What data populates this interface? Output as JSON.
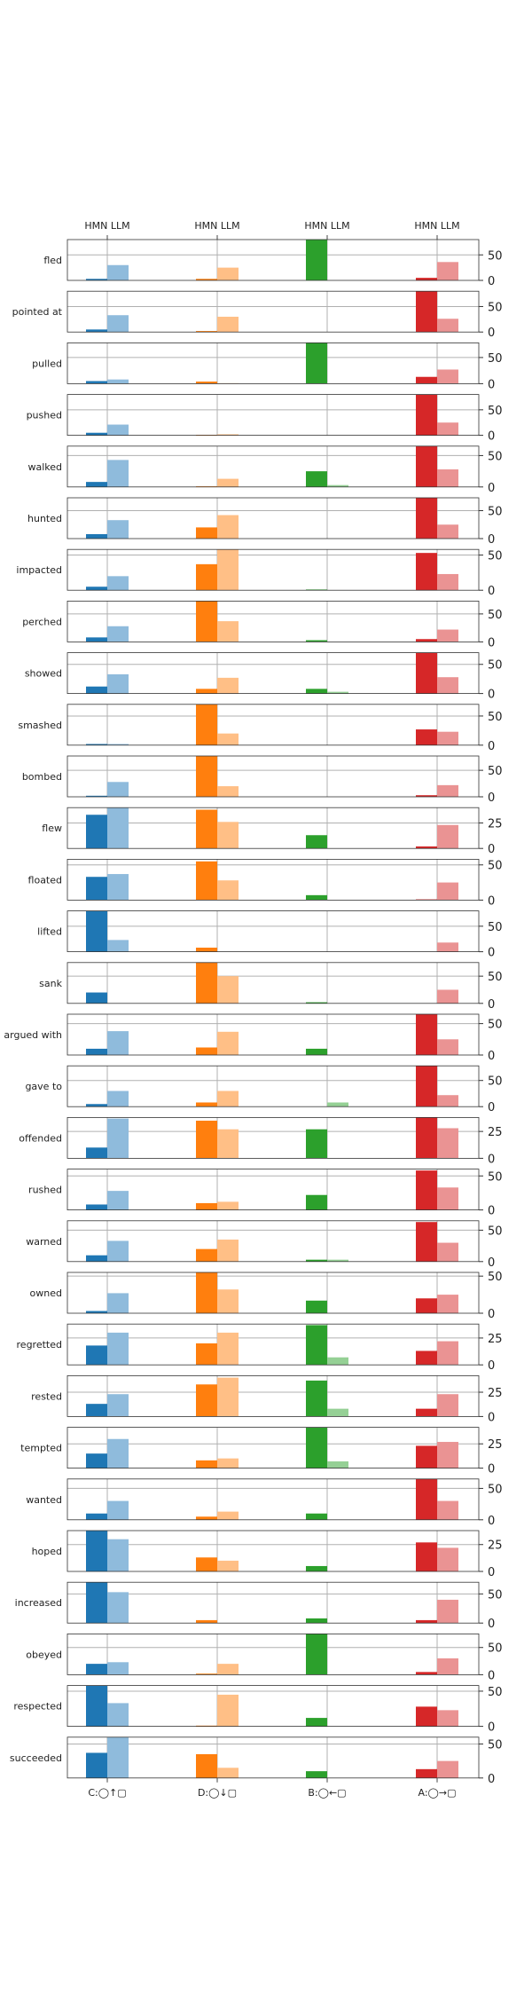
{
  "chart_data": {
    "type": "bar",
    "subtype": "small-multiples grouped bar grid",
    "column_header_label": "HMN LLM",
    "categories": [
      "C:◯↑▢",
      "D:◯↓▢",
      "B:◯←▢",
      "A:◯→▢"
    ],
    "category_colors": {
      "HMN": [
        "#1f77b4",
        "#ff7f0e",
        "#2ca02c",
        "#d62728"
      ],
      "LLM": [
        "#8fbbdc",
        "#ffbf86",
        "#95d095",
        "#ea9393"
      ]
    },
    "series_order": [
      "HMN",
      "LLM"
    ],
    "grid": "vertical lines at group centers",
    "rows": [
      {
        "verb": "fled",
        "ylim": [
          0,
          80
        ],
        "yticks": [
          0,
          50
        ],
        "hmn": [
          3,
          3,
          80,
          5
        ],
        "llm": [
          30,
          25,
          0,
          36
        ]
      },
      {
        "verb": "pointed at",
        "ylim": [
          0,
          80
        ],
        "yticks": [
          0,
          50
        ],
        "hmn": [
          5,
          2,
          0,
          80
        ],
        "llm": [
          33,
          30,
          0,
          26
        ]
      },
      {
        "verb": "pulled",
        "ylim": [
          0,
          78
        ],
        "yticks": [
          0,
          50
        ],
        "hmn": [
          5,
          4,
          78,
          13
        ],
        "llm": [
          8,
          1,
          0,
          27
        ]
      },
      {
        "verb": "pushed",
        "ylim": [
          0,
          80
        ],
        "yticks": [
          0,
          50
        ],
        "hmn": [
          5,
          1,
          0,
          80
        ],
        "llm": [
          21,
          2,
          0,
          25
        ]
      },
      {
        "verb": "walked",
        "ylim": [
          0,
          65
        ],
        "yticks": [
          0,
          50
        ],
        "hmn": [
          8,
          1,
          25,
          65
        ],
        "llm": [
          43,
          13,
          3,
          28
        ]
      },
      {
        "verb": "hunted",
        "ylim": [
          0,
          73
        ],
        "yticks": [
          0,
          50
        ],
        "hmn": [
          8,
          20,
          0,
          73
        ],
        "llm": [
          33,
          42,
          0,
          25
        ]
      },
      {
        "verb": "impacted",
        "ylim": [
          0,
          58
        ],
        "yticks": [
          0,
          50
        ],
        "hmn": [
          5,
          37,
          1,
          53
        ],
        "llm": [
          20,
          58,
          0,
          23
        ]
      },
      {
        "verb": "perched",
        "ylim": [
          0,
          73
        ],
        "yticks": [
          0,
          50
        ],
        "hmn": [
          8,
          73,
          3,
          5
        ],
        "llm": [
          28,
          37,
          0,
          22
        ]
      },
      {
        "verb": "showed",
        "ylim": [
          0,
          70
        ],
        "yticks": [
          0,
          50
        ],
        "hmn": [
          12,
          8,
          8,
          70
        ],
        "llm": [
          33,
          27,
          3,
          28
        ]
      },
      {
        "verb": "smashed",
        "ylim": [
          0,
          70
        ],
        "yticks": [
          0,
          50
        ],
        "hmn": [
          2,
          70,
          0,
          27
        ],
        "llm": [
          2,
          20,
          0,
          23
        ]
      },
      {
        "verb": "bombed",
        "ylim": [
          0,
          77
        ],
        "yticks": [
          0,
          50
        ],
        "hmn": [
          2,
          77,
          0,
          3
        ],
        "llm": [
          28,
          20,
          0,
          22
        ]
      },
      {
        "verb": "flew",
        "ylim": [
          0,
          40
        ],
        "yticks": [
          0,
          25
        ],
        "hmn": [
          33,
          38,
          13,
          2
        ],
        "llm": [
          40,
          26,
          0,
          23
        ]
      },
      {
        "verb": "floated",
        "ylim": [
          0,
          58
        ],
        "yticks": [
          0,
          50
        ],
        "hmn": [
          33,
          55,
          7,
          1
        ],
        "llm": [
          37,
          28,
          0,
          25
        ]
      },
      {
        "verb": "lifted",
        "ylim": [
          0,
          80
        ],
        "yticks": [
          0,
          50
        ],
        "hmn": [
          80,
          8,
          0,
          0
        ],
        "llm": [
          23,
          0,
          0,
          18
        ]
      },
      {
        "verb": "sank",
        "ylim": [
          0,
          75
        ],
        "yticks": [
          0,
          50
        ],
        "hmn": [
          20,
          75,
          2,
          0
        ],
        "llm": [
          0,
          50,
          0,
          25
        ]
      },
      {
        "verb": "argued with",
        "ylim": [
          0,
          65
        ],
        "yticks": [
          0,
          50
        ],
        "hmn": [
          10,
          12,
          10,
          65
        ],
        "llm": [
          38,
          37,
          0,
          25
        ]
      },
      {
        "verb": "gave to",
        "ylim": [
          0,
          78
        ],
        "yticks": [
          0,
          50
        ],
        "hmn": [
          5,
          8,
          0,
          78
        ],
        "llm": [
          30,
          30,
          8,
          22
        ]
      },
      {
        "verb": "offended",
        "ylim": [
          0,
          38
        ],
        "yticks": [
          0,
          25
        ],
        "hmn": [
          10,
          35,
          27,
          38
        ],
        "llm": [
          37,
          27,
          0,
          28
        ]
      },
      {
        "verb": "rushed",
        "ylim": [
          0,
          60
        ],
        "yticks": [
          0,
          50
        ],
        "hmn": [
          8,
          10,
          22,
          58
        ],
        "llm": [
          28,
          12,
          0,
          33
        ]
      },
      {
        "verb": "warned",
        "ylim": [
          0,
          65
        ],
        "yticks": [
          0,
          50
        ],
        "hmn": [
          10,
          20,
          3,
          63
        ],
        "llm": [
          33,
          35,
          3,
          30
        ]
      },
      {
        "verb": "owned",
        "ylim": [
          0,
          55
        ],
        "yticks": [
          0,
          50
        ],
        "hmn": [
          3,
          55,
          17,
          20
        ],
        "llm": [
          27,
          32,
          0,
          25
        ]
      },
      {
        "verb": "regretted",
        "ylim": [
          0,
          38
        ],
        "yticks": [
          0,
          25
        ],
        "hmn": [
          18,
          20,
          37,
          13
        ],
        "llm": [
          30,
          30,
          7,
          22
        ]
      },
      {
        "verb": "rested",
        "ylim": [
          0,
          42
        ],
        "yticks": [
          0,
          25
        ],
        "hmn": [
          13,
          33,
          37,
          8
        ],
        "llm": [
          23,
          40,
          8,
          23
        ]
      },
      {
        "verb": "tempted",
        "ylim": [
          0,
          42
        ],
        "yticks": [
          0,
          25
        ],
        "hmn": [
          15,
          8,
          42,
          23
        ],
        "llm": [
          30,
          10,
          7,
          27
        ]
      },
      {
        "verb": "wanted",
        "ylim": [
          0,
          65
        ],
        "yticks": [
          0,
          50
        ],
        "hmn": [
          10,
          5,
          10,
          65
        ],
        "llm": [
          30,
          13,
          0,
          30
        ]
      },
      {
        "verb": "hoped",
        "ylim": [
          0,
          38
        ],
        "yticks": [
          0,
          25
        ],
        "hmn": [
          38,
          13,
          5,
          27
        ],
        "llm": [
          30,
          10,
          0,
          22
        ]
      },
      {
        "verb": "increased",
        "ylim": [
          0,
          70
        ],
        "yticks": [
          0,
          50
        ],
        "hmn": [
          70,
          5,
          8,
          5
        ],
        "llm": [
          53,
          0,
          0,
          40
        ]
      },
      {
        "verb": "obeyed",
        "ylim": [
          0,
          75
        ],
        "yticks": [
          0,
          50
        ],
        "hmn": [
          20,
          2,
          75,
          5
        ],
        "llm": [
          23,
          20,
          0,
          30
        ]
      },
      {
        "verb": "respected",
        "ylim": [
          0,
          58
        ],
        "yticks": [
          0,
          50
        ],
        "hmn": [
          58,
          1,
          12,
          28
        ],
        "llm": [
          33,
          45,
          0,
          23
        ]
      },
      {
        "verb": "succeeded",
        "ylim": [
          0,
          60
        ],
        "yticks": [
          0,
          50
        ],
        "hmn": [
          37,
          35,
          10,
          13
        ],
        "llm": [
          60,
          15,
          0,
          25
        ]
      }
    ]
  }
}
